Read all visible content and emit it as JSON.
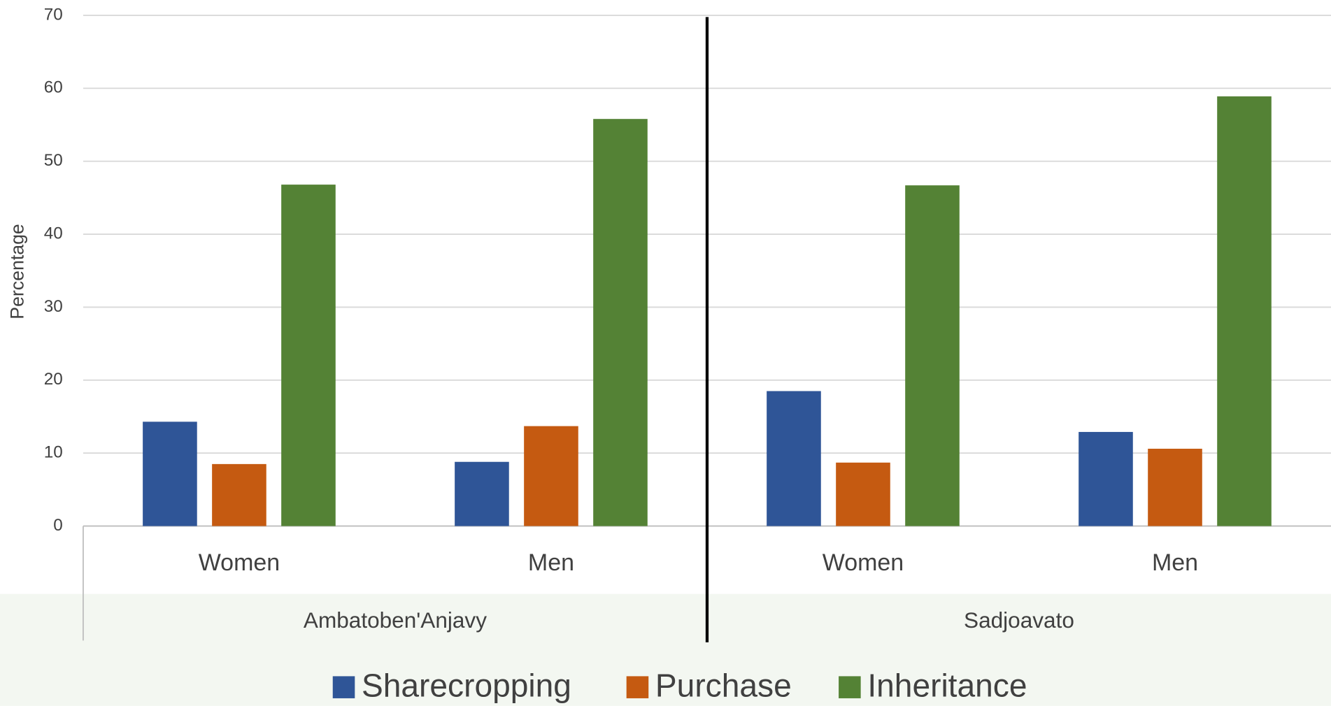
{
  "chart_data": {
    "type": "bar",
    "y_label": "Percentage",
    "categories": [
      "Women",
      "Men",
      "Women",
      "Men"
    ],
    "groups": [
      "Ambatoben'Anjavy",
      "Sadjoavato"
    ],
    "series": [
      {
        "name": "Sharecropping",
        "color": "#2f5597",
        "values": [
          14.3,
          8.8,
          18.5,
          12.9
        ]
      },
      {
        "name": "Purchase",
        "color": "#c55a11",
        "values": [
          8.5,
          13.7,
          8.7,
          10.6
        ]
      },
      {
        "name": "Inheritance",
        "color": "#548235",
        "values": [
          46.8,
          55.8,
          46.7,
          58.9
        ]
      }
    ],
    "ylim": [
      0,
      70
    ],
    "yticks": [
      0,
      10,
      20,
      30,
      40,
      50,
      60,
      70
    ],
    "grid": true,
    "legend": "bottom"
  }
}
